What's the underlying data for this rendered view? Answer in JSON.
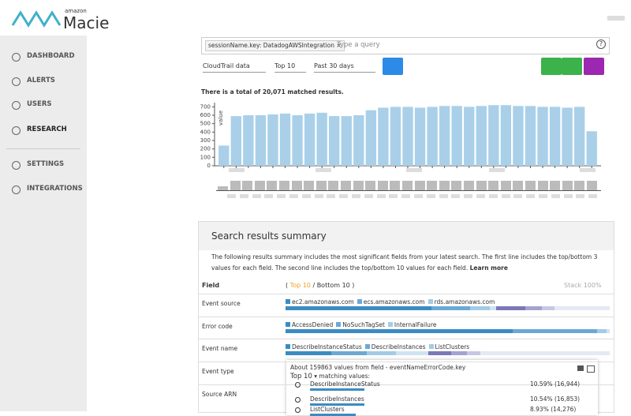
{
  "logo": {
    "small": "amazon",
    "name": "Macie"
  },
  "nav": [
    "DASHBOARD",
    "ALERTS",
    "USERS",
    "RESEARCH",
    "SETTINGS",
    "INTEGRATIONS"
  ],
  "query": {
    "chip": "sessionName.key: DatadogAWSIntegration",
    "chip_close": "×",
    "placeholder": "Type a query",
    "help": "?"
  },
  "filters": [
    "CloudTrail data",
    "Top 10",
    "Past 30 days"
  ],
  "total": "There is a total of 20,071 matched results.",
  "chart_data": {
    "type": "bar",
    "y_label": "value",
    "color": "#a9d0e8",
    "values": [
      240,
      590,
      600,
      600,
      610,
      620,
      600,
      620,
      630,
      590,
      590,
      600,
      660,
      690,
      700,
      700,
      690,
      700,
      710,
      710,
      700,
      710,
      720,
      720,
      710,
      710,
      700,
      700,
      690,
      700,
      410
    ],
    "ylim": [
      0,
      750
    ],
    "yticks": [
      0,
      100,
      200,
      300,
      400,
      500,
      600,
      700
    ]
  },
  "summary": {
    "title": "Search results summary",
    "description": "The following results summary includes the most significant fields from your latest search. The first line includes the top/bottom 3 values for each field. The second line includes the top/bottom 10 values for each field.",
    "learn_more": "Learn more",
    "field_header": "Field",
    "open": "(",
    "top": "Top 10",
    "rest": "/ Bottom 10 )",
    "stack": "Stack 100%",
    "colors": [
      "#3a8cc2",
      "#6ba9d4",
      "#a3cbe6",
      "#cfe3f1",
      "#7b78b8",
      "#a3a2d0",
      "#c7c7e4",
      "#e3eaf3"
    ],
    "rows": [
      {
        "field": "Event source",
        "legend": [
          "ec2.amazonaws.com",
          "ecs.amazonaws.com",
          "rds.amazonaws.com"
        ],
        "segments": [
          45,
          12,
          6,
          2,
          9,
          5,
          4,
          17
        ]
      },
      {
        "field": "Error code",
        "legend": [
          "AccessDenied",
          "NoSuchTagSet",
          "InternalFailure"
        ],
        "segments": [
          70,
          26,
          3,
          1
        ]
      },
      {
        "field": "Event name",
        "legend": [
          "DescribeInstanceStatus",
          "DescribeInstances",
          "ListClusters"
        ],
        "segments": [
          14,
          11,
          9,
          10,
          7,
          5,
          4,
          40
        ]
      },
      {
        "field": "Event type"
      },
      {
        "field": "Source ARN"
      }
    ]
  },
  "popup": {
    "head": "About 159863 values from field - eventNameErrorCode.key",
    "top": "Top 10",
    "tail": "matching values:",
    "rows": [
      {
        "name": "DescribeInstanceStatus",
        "value": 10.59,
        "value_label": "10.59% (16,944)"
      },
      {
        "name": "DescribeInstances",
        "value": 10.54,
        "value_label": "10.54% (16,853)"
      },
      {
        "name": "ListClusters",
        "value": 8.93,
        "value_label": "8.93% (14,276)"
      }
    ]
  }
}
